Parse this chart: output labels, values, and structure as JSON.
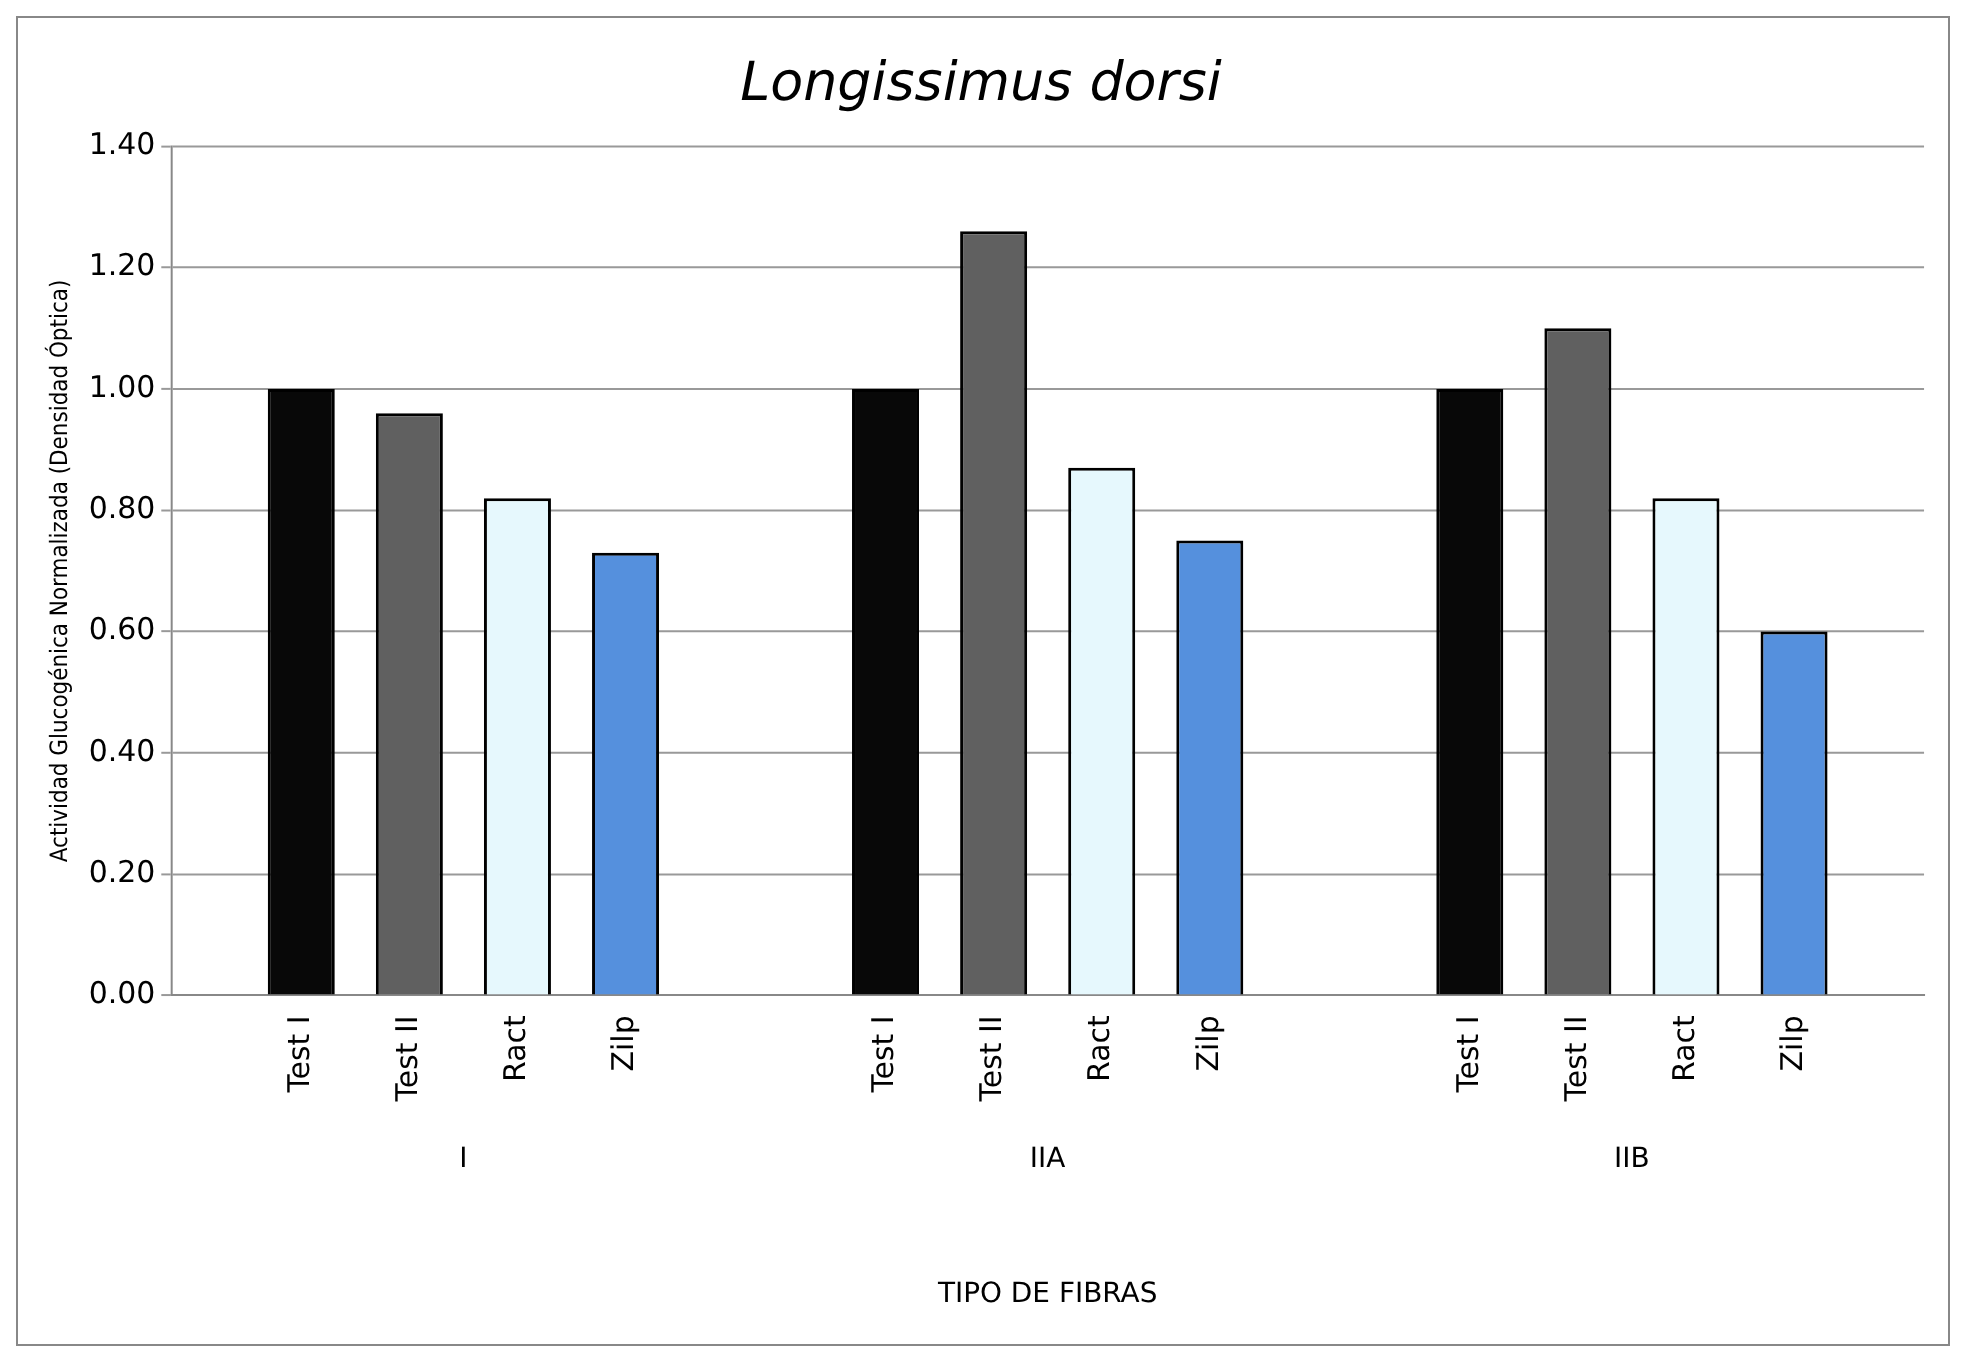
{
  "chart_data": {
    "type": "bar",
    "title": "Longissimus dorsi",
    "xlabel": "TIPO DE FIBRAS",
    "ylabel": "Actividad Glucogénica Normalizada (Densidad Óptica)",
    "categories": [
      "I",
      "IIA",
      "IIB"
    ],
    "series": [
      {
        "name": "Test I",
        "color": "#080808",
        "values": [
          1.0,
          1.0,
          1.0
        ]
      },
      {
        "name": "Test II",
        "color": "#606060",
        "values": [
          0.96,
          1.26,
          1.1
        ]
      },
      {
        "name": "Ract",
        "color": "#e6f8fd",
        "values": [
          0.82,
          0.87,
          0.82
        ]
      },
      {
        "name": "Zilp",
        "color": "#5590dd",
        "values": [
          0.73,
          0.75,
          0.6
        ]
      }
    ],
    "ylim": [
      0,
      1.4
    ],
    "yticks": [
      {
        "value": 0,
        "label": "0.00"
      },
      {
        "value": 0.2,
        "label": "0.20"
      },
      {
        "value": 0.4,
        "label": "0.40"
      },
      {
        "value": 0.6,
        "label": "0.60"
      },
      {
        "value": 0.8,
        "label": "0.80"
      },
      {
        "value": 1.0,
        "label": "1.00"
      },
      {
        "value": 1.2,
        "label": "1.20"
      },
      {
        "value": 1.4,
        "label": "1.40"
      }
    ],
    "grid": "y",
    "legend": false
  }
}
